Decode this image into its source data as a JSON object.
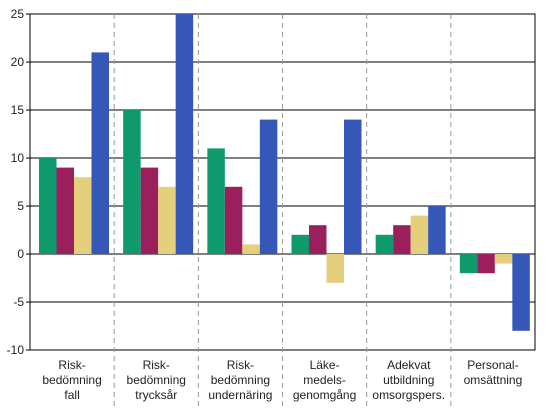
{
  "chart_data": {
    "type": "bar",
    "categories": [
      [
        "Risk-",
        "bedömning",
        "fall"
      ],
      [
        "Risk-",
        "bedömning",
        "trycksår"
      ],
      [
        "Risk-",
        "bedömning",
        "undernäring"
      ],
      [
        "Läke-",
        "medels-",
        "genomgång"
      ],
      [
        "Adekvat",
        "utbildning",
        "omsorgspers."
      ],
      [
        "Personal-",
        "omsättning"
      ]
    ],
    "series": [
      {
        "values": [
          10,
          15,
          11,
          2,
          2,
          -2
        ],
        "color": "#0f9a6e"
      },
      {
        "values": [
          9,
          9,
          7,
          3,
          3,
          -2
        ],
        "color": "#9b1f5c"
      },
      {
        "values": [
          8,
          7,
          1,
          -3,
          4,
          -1
        ],
        "color": "#e4cf7c"
      },
      {
        "values": [
          21,
          25,
          14,
          14,
          5,
          -8
        ],
        "color": "#3457b8"
      }
    ],
    "yticks": [
      "25",
      "20",
      "15",
      "10",
      "5",
      "0",
      "-5",
      "-10"
    ],
    "ylim": [
      -10,
      25
    ],
    "grid": true,
    "legend": "none",
    "title": "",
    "xlabel": "",
    "ylabel": ""
  }
}
